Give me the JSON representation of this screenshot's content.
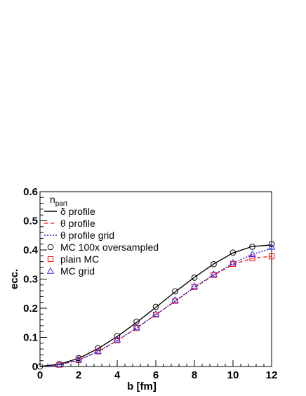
{
  "chart_data": {
    "type": "line",
    "xlabel": "b [fm]",
    "ylabel": "ecc.",
    "xlim": [
      0,
      12
    ],
    "ylim": [
      0,
      0.6
    ],
    "x_ticks": [
      0,
      2,
      4,
      6,
      8,
      10,
      12
    ],
    "x_tick_labels": [
      "0",
      "2",
      "4",
      "6",
      "8",
      "10",
      "12"
    ],
    "y_ticks": [
      0,
      0.1,
      0.2,
      0.3,
      0.4,
      0.5,
      0.6
    ],
    "y_tick_labels": [
      "0",
      "0.1",
      "0.2",
      "0.3",
      "0.4",
      "0.5",
      "0.6"
    ],
    "grid": false,
    "legend": {
      "placement": "top-left",
      "title": "n",
      "title_subscript": "part",
      "entries": [
        {
          "label": "δ profile",
          "series": "delta"
        },
        {
          "label": "θ profile",
          "series": "theta"
        },
        {
          "label": "θ profile grid",
          "series": "theta_grid"
        },
        {
          "label": "MC 100x oversampled",
          "series": "mc_over"
        },
        {
          "label": "plain MC",
          "series": "plain_mc"
        },
        {
          "label": "MC grid",
          "series": "mc_grid"
        }
      ]
    },
    "series": [
      {
        "key": "delta",
        "kind": "line",
        "style": "solid",
        "color": "#000000",
        "x": [
          0,
          1,
          2,
          3,
          4,
          5,
          6,
          7,
          8,
          9,
          10,
          11,
          12
        ],
        "y": [
          0,
          0.008,
          0.028,
          0.061,
          0.103,
          0.151,
          0.203,
          0.256,
          0.306,
          0.352,
          0.39,
          0.412,
          0.417
        ]
      },
      {
        "key": "theta",
        "kind": "line",
        "style": "dashed",
        "color": "#ff0000",
        "x": [
          0,
          1,
          2,
          3,
          4,
          5,
          6,
          7,
          8,
          9,
          10,
          11,
          12
        ],
        "y": [
          0,
          0.006,
          0.022,
          0.051,
          0.089,
          0.132,
          0.178,
          0.224,
          0.271,
          0.313,
          0.35,
          0.372,
          0.378
        ]
      },
      {
        "key": "theta_grid",
        "kind": "line",
        "style": "dotted",
        "color": "#0000cc",
        "x": [
          0,
          1,
          2,
          3,
          4,
          5,
          6,
          7,
          8,
          9,
          10,
          11,
          12
        ],
        "y": [
          0,
          0.006,
          0.022,
          0.051,
          0.089,
          0.132,
          0.178,
          0.225,
          0.272,
          0.315,
          0.354,
          0.385,
          0.405
        ]
      },
      {
        "key": "mc_over",
        "kind": "marker",
        "marker": "circle",
        "color": "#000000",
        "x": [
          0,
          1,
          2,
          3,
          4,
          5,
          6,
          7,
          8,
          9,
          10,
          11,
          12
        ],
        "y": [
          0,
          0.008,
          0.029,
          0.063,
          0.105,
          0.154,
          0.205,
          0.258,
          0.305,
          0.351,
          0.391,
          0.411,
          0.42
        ]
      },
      {
        "key": "plain_mc",
        "kind": "marker",
        "marker": "square",
        "color": "#ff0000",
        "x": [
          1,
          2,
          3,
          4,
          5,
          6,
          7,
          8,
          9,
          10,
          11,
          12
        ],
        "y": [
          0.006,
          0.022,
          0.052,
          0.09,
          0.132,
          0.178,
          0.225,
          0.273,
          0.314,
          0.352,
          0.371,
          0.378
        ]
      },
      {
        "key": "mc_grid",
        "kind": "marker",
        "marker": "triangle",
        "color": "#3333ff",
        "x": [
          1,
          2,
          3,
          4,
          5,
          6,
          7,
          8,
          9,
          10,
          11,
          12
        ],
        "y": [
          0.007,
          0.024,
          0.053,
          0.092,
          0.134,
          0.18,
          0.228,
          0.275,
          0.317,
          0.356,
          0.385,
          0.41
        ]
      }
    ]
  }
}
